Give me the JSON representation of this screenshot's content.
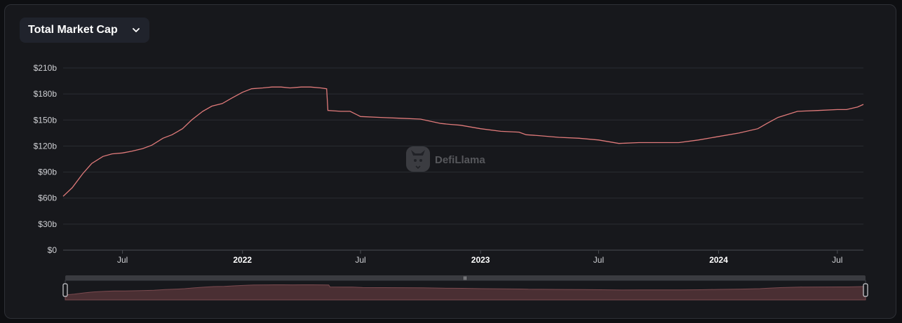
{
  "selector": {
    "label": "Total Market Cap",
    "icon": "chevron-down-icon"
  },
  "watermark": {
    "text": "DefiLlama",
    "icon": "llama-logo-icon"
  },
  "colors": {
    "line": "#e07a7a",
    "grid": "#2a2c32",
    "axis_text": "#cfd0d4",
    "background": "#17181c"
  },
  "chart_data": {
    "type": "line",
    "title": "",
    "xlabel": "",
    "ylabel": "",
    "y_unit": "b",
    "ylim": [
      0,
      210
    ],
    "yticks": [
      "$0",
      "$30b",
      "$60b",
      "$90b",
      "$120b",
      "$150b",
      "$180b",
      "$210b"
    ],
    "xticks": [
      {
        "label": "Jul",
        "date": "2021-07-01",
        "bold": false
      },
      {
        "label": "2022",
        "date": "2022-01-01",
        "bold": true
      },
      {
        "label": "Jul",
        "date": "2022-07-01",
        "bold": false
      },
      {
        "label": "2023",
        "date": "2023-01-01",
        "bold": true
      },
      {
        "label": "Jul",
        "date": "2023-07-01",
        "bold": false
      },
      {
        "label": "2024",
        "date": "2024-01-01",
        "bold": true
      },
      {
        "label": "Jul",
        "date": "2024-07-01",
        "bold": false
      }
    ],
    "grid": true,
    "series": [
      {
        "x": [
          "2021-04-01",
          "2021-04-15",
          "2021-05-01",
          "2021-05-15",
          "2021-06-01",
          "2021-06-15",
          "2021-07-01",
          "2021-07-15",
          "2021-08-01",
          "2021-08-15",
          "2021-09-01",
          "2021-09-15",
          "2021-10-01",
          "2021-10-15",
          "2021-11-01",
          "2021-11-15",
          "2021-12-01",
          "2021-12-15",
          "2022-01-01",
          "2022-01-15",
          "2022-02-01",
          "2022-02-15",
          "2022-03-01",
          "2022-03-15",
          "2022-04-01",
          "2022-04-15",
          "2022-05-01",
          "2022-05-10",
          "2022-05-12",
          "2022-06-01",
          "2022-06-15",
          "2022-07-01",
          "2022-08-01",
          "2022-09-01",
          "2022-10-01",
          "2022-11-01",
          "2022-11-15",
          "2022-12-01",
          "2023-01-01",
          "2023-02-01",
          "2023-03-01",
          "2023-03-12",
          "2023-04-01",
          "2023-05-01",
          "2023-06-01",
          "2023-07-01",
          "2023-08-01",
          "2023-09-01",
          "2023-10-01",
          "2023-11-01",
          "2023-12-01",
          "2024-01-01",
          "2024-02-01",
          "2024-03-01",
          "2024-03-15",
          "2024-04-01",
          "2024-05-01",
          "2024-06-01",
          "2024-07-01",
          "2024-07-15",
          "2024-08-01",
          "2024-08-10"
        ],
        "y": [
          62,
          72,
          88,
          100,
          108,
          111,
          112,
          114,
          117,
          121,
          129,
          133,
          140,
          150,
          160,
          166,
          169,
          175,
          182,
          186,
          187,
          188,
          188,
          187,
          188,
          188,
          187,
          186,
          161,
          160,
          160,
          154,
          153,
          152,
          151,
          146,
          145,
          144,
          140,
          137,
          136,
          133,
          132,
          130,
          129,
          127,
          123,
          124,
          124,
          124,
          127,
          131,
          135,
          140,
          146,
          153,
          160,
          161,
          162,
          162,
          165,
          168
        ]
      }
    ]
  }
}
